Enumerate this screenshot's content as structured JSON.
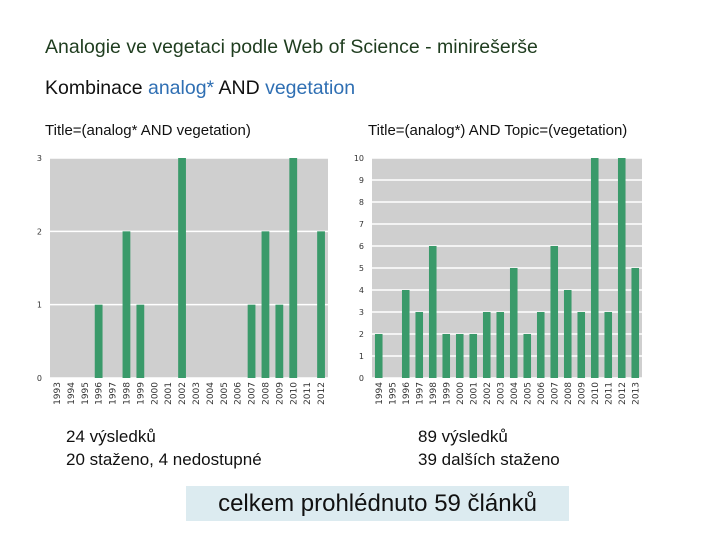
{
  "slide": {
    "title": "Analogie ve vegetaci podle Web of Science - minirešerše",
    "subtitle_prefix": "Kombinace ",
    "subtitle_term1": "analog*",
    "subtitle_mid": " AND ",
    "subtitle_term2": "vegetation"
  },
  "chart1_caption": {
    "results": "24 výsledků",
    "downloaded": "20 staženo, 4 nedostupné"
  },
  "chart2_caption": {
    "results": "89 výsledků",
    "downloaded": "39 dalších staženo"
  },
  "total_box": {
    "text": "celkem prohlédnuto 59 článků",
    "background": "#dcebf0"
  },
  "chart_data": [
    {
      "type": "bar",
      "title": "Title=(analog* AND vegetation)",
      "categories": [
        "1993",
        "1994",
        "1995",
        "1996",
        "1997",
        "1998",
        "1999",
        "2000",
        "2001",
        "2002",
        "2003",
        "2004",
        "2005",
        "2006",
        "2007",
        "2008",
        "2009",
        "2010",
        "2011",
        "2012"
      ],
      "values": [
        0,
        0,
        0,
        1,
        0,
        2,
        1,
        0,
        0,
        3,
        0,
        0,
        0,
        0,
        1,
        2,
        1,
        3,
        0,
        2
      ],
      "ylim": [
        0,
        3
      ],
      "yticks": [
        "0",
        "1",
        "2",
        "3"
      ],
      "grid": true,
      "bar_color": "#3a9a6a",
      "plot_background": "#cfcfcf"
    },
    {
      "type": "bar",
      "title": "Title=(analog*) AND Topic=(vegetation)",
      "categories": [
        "1994",
        "1995",
        "1996",
        "1997",
        "1998",
        "1999",
        "2000",
        "2001",
        "2002",
        "2003",
        "2004",
        "2005",
        "2006",
        "2007",
        "2008",
        "2009",
        "2010",
        "2011",
        "2012",
        "2013"
      ],
      "values": [
        2,
        0,
        4,
        3,
        6,
        2,
        2,
        2,
        3,
        3,
        5,
        2,
        3,
        6,
        4,
        3,
        10,
        3,
        10,
        5
      ],
      "ylim": [
        0,
        10
      ],
      "yticks": [
        "0",
        "1",
        "2",
        "3",
        "4",
        "5",
        "6",
        "7",
        "8",
        "9",
        "10"
      ],
      "grid": true,
      "bar_color": "#3a9a6a",
      "plot_background": "#cfcfcf"
    }
  ]
}
